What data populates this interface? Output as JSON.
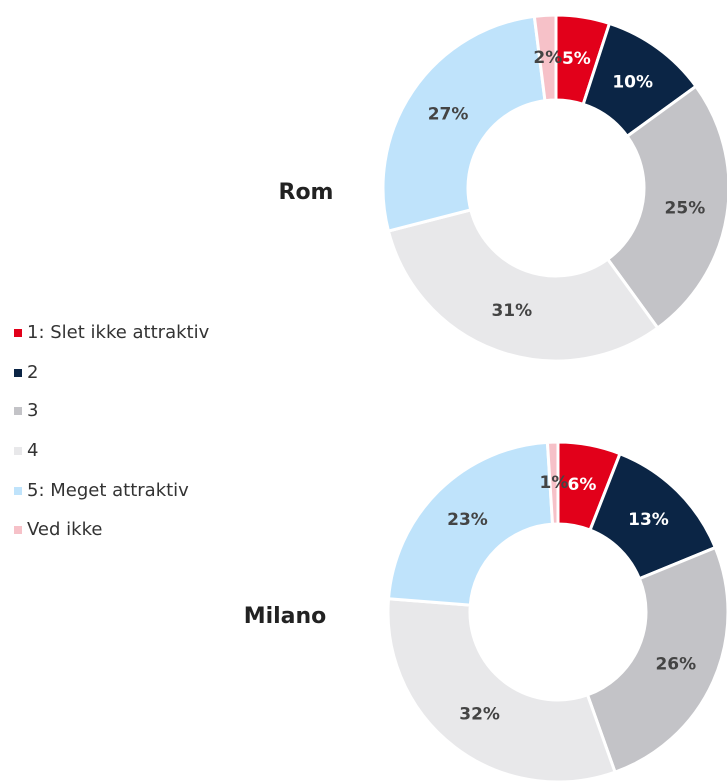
{
  "chart_data": [
    {
      "type": "pie",
      "title": "Rom",
      "categories": [
        "1: Slet ikke attraktiv",
        "2",
        "3",
        "4",
        "5: Meget attraktiv",
        "Ved ikke"
      ],
      "values": [
        5,
        10,
        25,
        31,
        27,
        2
      ],
      "value_labels": [
        "5%",
        "10%",
        "25%",
        "31%",
        "27%",
        "2%"
      ],
      "colors": [
        "#e2001a",
        "#0b2545",
        "#c3c3c7",
        "#e8e8ea",
        "#bfe3fb",
        "#f6c1c8"
      ]
    },
    {
      "type": "pie",
      "title": "Milano",
      "categories": [
        "1: Slet ikke attraktiv",
        "2",
        "3",
        "4",
        "5: Meget attraktiv",
        "Ved ikke"
      ],
      "values": [
        6,
        13,
        26,
        32,
        23,
        1
      ],
      "value_labels": [
        "6%",
        "13%",
        "26%",
        "32%",
        "23%",
        "1%"
      ],
      "colors": [
        "#e2001a",
        "#0b2545",
        "#c3c3c7",
        "#e8e8ea",
        "#bfe3fb",
        "#f6c1c8"
      ]
    }
  ]
}
